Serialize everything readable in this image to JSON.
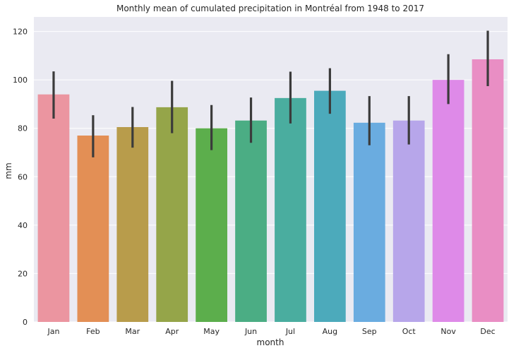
{
  "chart_data": {
    "type": "bar",
    "title": "Monthly mean of cumulated precipitation in Montréal from 1948 to 2017",
    "xlabel": "month",
    "ylabel": "mm",
    "ylim": [
      0,
      126
    ],
    "yticks": [
      0,
      20,
      40,
      60,
      80,
      100,
      120
    ],
    "grid": true,
    "categories": [
      "Jan",
      "Feb",
      "Mar",
      "Apr",
      "May",
      "Jun",
      "Jul",
      "Aug",
      "Sep",
      "Oct",
      "Nov",
      "Dec"
    ],
    "values": [
      94,
      77,
      80.5,
      88.7,
      80,
      83.2,
      92.5,
      95.5,
      82.3,
      83.2,
      100,
      108.5
    ],
    "error_low": [
      84,
      68,
      72,
      78,
      71,
      74,
      82,
      86,
      73,
      73.3,
      90,
      97.4
    ],
    "error_high": [
      103.5,
      85.4,
      88.8,
      99.6,
      89.6,
      92.7,
      103.4,
      104.8,
      93.3,
      93.3,
      110.6,
      120.3
    ],
    "colors": [
      "#eb95a0",
      "#e38f55",
      "#b89c4b",
      "#95a549",
      "#5cae4c",
      "#4bad84",
      "#4aad9f",
      "#4caabb",
      "#6aace0",
      "#b7a6ea",
      "#de8ae8",
      "#e98ec4"
    ],
    "background_color": "#eaeaf2",
    "grid_color": "#ffffff",
    "error_bar_color": "#3b3b3b"
  }
}
